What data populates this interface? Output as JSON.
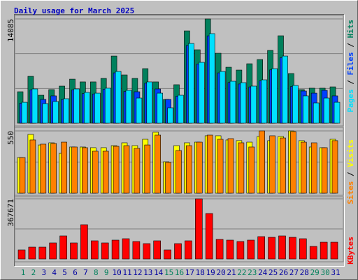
{
  "chart_data": [
    {
      "type": "bar",
      "title": "Daily usage for March 2025",
      "categories": [
        "1",
        "2",
        "3",
        "4",
        "5",
        "6",
        "7",
        "8",
        "9",
        "10",
        "11",
        "12",
        "13",
        "14",
        "15",
        "16",
        "17",
        "18",
        "19",
        "20",
        "21",
        "22",
        "23",
        "24",
        "25",
        "26",
        "27",
        "28",
        "29",
        "30",
        "31"
      ],
      "weekend_indices": [
        0,
        1,
        7,
        8,
        14,
        15,
        21,
        22,
        28,
        29
      ],
      "weekend_color": "#00805c",
      "label_color": "#0000a0",
      "legend_separator": "/",
      "ylim": [
        0,
        14085
      ],
      "yticks": [
        14085
      ],
      "series": [
        {
          "name": "Hits",
          "color": "#00805c",
          "values": [
            4250,
            6330,
            3780,
            4540,
            5010,
            5950,
            5580,
            5580,
            6050,
            9070,
            6520,
            6050,
            7370,
            5580,
            3210,
            5200,
            12470,
            9920,
            14085,
            9450,
            7560,
            7180,
            8030,
            8600,
            9830,
            11810,
            6710,
            4540,
            4730,
            4730,
            4910
          ]
        },
        {
          "name": "Files",
          "color": "#0040ff",
          "values": [
            2700,
            4500,
            3210,
            3690,
            3200,
            4500,
            4000,
            3950,
            4600,
            6800,
            4300,
            4250,
            5400,
            4630,
            3210,
            3650,
            10500,
            8000,
            11800,
            6800,
            5500,
            5300,
            4900,
            5700,
            7200,
            8850,
            4950,
            4350,
            4060,
            4440,
            3690
          ]
        },
        {
          "name": "Pages",
          "color": "#00e0ff",
          "values": [
            2830,
            4630,
            2650,
            2930,
            3310,
            4630,
            4160,
            4060,
            4730,
            6990,
            4440,
            3400,
            5580,
            4060,
            2080,
            3780,
            10770,
            8220,
            12100,
            6990,
            5670,
            5480,
            5010,
            5860,
            7370,
            9070,
            5100,
            3690,
            2740,
            3400,
            2830
          ]
        }
      ]
    },
    {
      "type": "bar",
      "ylim": [
        0,
        550
      ],
      "yticks": [
        550
      ],
      "series": [
        {
          "name": "Visits",
          "color": "#ffff00",
          "values": [
            315,
            519,
            426,
            445,
            352,
            408,
            408,
            402,
            402,
            420,
            445,
            420,
            476,
            538,
            278,
            420,
            445,
            451,
            507,
            507,
            470,
            464,
            451,
            501,
            464,
            501,
            550,
            464,
            408,
            402,
            476
          ]
        },
        {
          "name": "Sites",
          "color": "#ff8000",
          "values": [
            315,
            470,
            433,
            439,
            451,
            408,
            402,
            371,
            371,
            414,
            420,
            396,
            426,
            513,
            272,
            377,
            420,
            451,
            513,
            476,
            482,
            445,
            408,
            550,
            507,
            488,
            544,
            451,
            445,
            402,
            464
          ]
        }
      ]
    },
    {
      "type": "bar",
      "ylim": [
        0,
        367671
      ],
      "yticks": [
        367671
      ],
      "series": [
        {
          "name": "KBytes",
          "color": "#ff0000",
          "values": [
            55580,
            72680,
            72680,
            98330,
            141080,
            98330,
            209480,
            111150,
            98330,
            115430,
            123980,
            106880,
            94050,
            111150,
            55580,
            94050,
            111150,
            367671,
            277880,
            119700,
            115430,
            106880,
            115430,
            136800,
            132530,
            141080,
            132530,
            123980,
            76950,
            102600,
            102600
          ]
        }
      ]
    }
  ]
}
